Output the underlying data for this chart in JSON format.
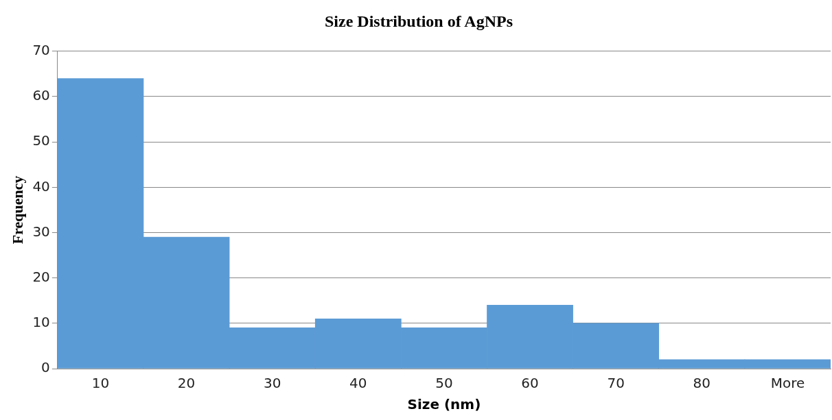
{
  "chart_data": {
    "type": "bar",
    "title": "Size Distribution of AgNPs",
    "xlabel": "Size (nm)",
    "ylabel": "Frequency",
    "categories": [
      "10",
      "20",
      "30",
      "40",
      "50",
      "60",
      "70",
      "80",
      "More"
    ],
    "values": [
      64,
      29,
      9,
      11,
      9,
      14,
      10,
      2,
      2
    ],
    "color": "#5b9bd5",
    "ylim": [
      0,
      70
    ],
    "yticks": [
      0,
      10,
      20,
      30,
      40,
      50,
      60,
      70
    ],
    "grid": "y",
    "legend": false
  }
}
